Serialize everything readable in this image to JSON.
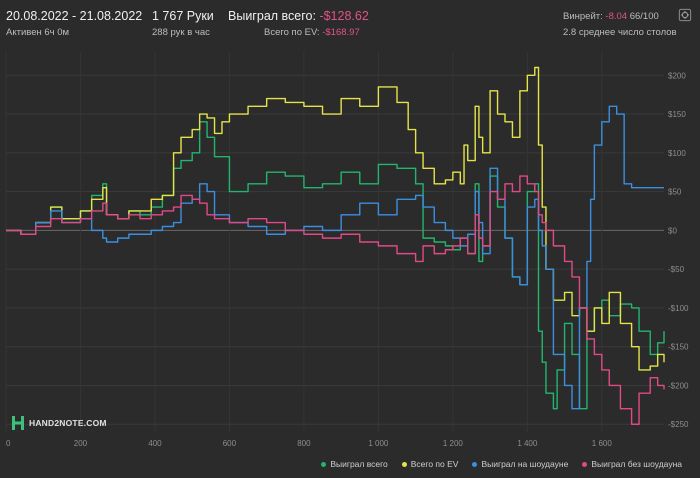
{
  "header": {
    "date_range": "20.08.2022 - 21.08.2022",
    "active": "Активен 6ч 0м",
    "hands": "1 767 Руки",
    "hands_per_hour": "288 рук в час",
    "won_label": "Выиграл всего:",
    "won_value": "-$128.62",
    "ev_label": "Всего по EV:",
    "ev_value": "-$168.97",
    "winrate_label": "Винрейт:",
    "winrate_value": "-8.04",
    "winrate_suffix": "66/100",
    "tables": "2.8 среднее число столов"
  },
  "logo": {
    "text": "HAND2NOTE.COM",
    "icon": "h2n-logo-icon"
  },
  "settings": {
    "icon": "gear-icon"
  },
  "chart_data": {
    "type": "line",
    "xlim": [
      0,
      1767
    ],
    "ylim": [
      -260,
      230
    ],
    "x_ticks": [
      0,
      200,
      400,
      600,
      800,
      1000,
      1200,
      1400,
      1600
    ],
    "x_tick_labels": [
      "0",
      "200",
      "400",
      "600",
      "800",
      "1 000",
      "1 200",
      "1 400",
      "1 600"
    ],
    "y_ticks": [
      200,
      150,
      100,
      50,
      0,
      -50,
      -100,
      -150,
      -200,
      -250
    ],
    "y_tick_labels": [
      "$200",
      "$150",
      "$100",
      "$50",
      "$0",
      "-$50",
      "-$100",
      "-$150",
      "-$200",
      "-$250"
    ],
    "grid": true,
    "legend_position": "bottom-right",
    "series": [
      {
        "name": "Выиграл всего",
        "color": "#23b56e",
        "points": [
          [
            0,
            0
          ],
          [
            40,
            -5
          ],
          [
            80,
            10
          ],
          [
            120,
            30
          ],
          [
            150,
            15
          ],
          [
            200,
            25
          ],
          [
            230,
            45
          ],
          [
            260,
            60
          ],
          [
            270,
            20
          ],
          [
            300,
            15
          ],
          [
            330,
            25
          ],
          [
            360,
            20
          ],
          [
            390,
            30
          ],
          [
            420,
            45
          ],
          [
            450,
            80
          ],
          [
            470,
            90
          ],
          [
            500,
            100
          ],
          [
            520,
            140
          ],
          [
            540,
            120
          ],
          [
            560,
            95
          ],
          [
            600,
            50
          ],
          [
            650,
            60
          ],
          [
            700,
            75
          ],
          [
            750,
            70
          ],
          [
            800,
            55
          ],
          [
            850,
            60
          ],
          [
            900,
            75
          ],
          [
            950,
            60
          ],
          [
            1000,
            85
          ],
          [
            1050,
            80
          ],
          [
            1100,
            60
          ],
          [
            1120,
            -10
          ],
          [
            1150,
            -15
          ],
          [
            1180,
            -20
          ],
          [
            1200,
            -25
          ],
          [
            1220,
            -10
          ],
          [
            1240,
            -30
          ],
          [
            1260,
            60
          ],
          [
            1270,
            -40
          ],
          [
            1280,
            -20
          ],
          [
            1300,
            70
          ],
          [
            1320,
            30
          ],
          [
            1340,
            -10
          ],
          [
            1360,
            -60
          ],
          [
            1380,
            -70
          ],
          [
            1400,
            50
          ],
          [
            1420,
            60
          ],
          [
            1430,
            -130
          ],
          [
            1440,
            -170
          ],
          [
            1450,
            -210
          ],
          [
            1470,
            -230
          ],
          [
            1480,
            -180
          ],
          [
            1500,
            -120
          ],
          [
            1520,
            -160
          ],
          [
            1540,
            -230
          ],
          [
            1560,
            -130
          ],
          [
            1580,
            -100
          ],
          [
            1600,
            -90
          ],
          [
            1620,
            -110
          ],
          [
            1650,
            -95
          ],
          [
            1680,
            -100
          ],
          [
            1700,
            -130
          ],
          [
            1730,
            -160
          ],
          [
            1750,
            -145
          ],
          [
            1767,
            -130
          ]
        ]
      },
      {
        "name": "Всего по EV",
        "color": "#e4e44a",
        "points": [
          [
            0,
            0
          ],
          [
            40,
            -5
          ],
          [
            80,
            10
          ],
          [
            120,
            30
          ],
          [
            150,
            15
          ],
          [
            200,
            25
          ],
          [
            230,
            40
          ],
          [
            260,
            55
          ],
          [
            270,
            20
          ],
          [
            300,
            15
          ],
          [
            330,
            25
          ],
          [
            360,
            25
          ],
          [
            390,
            40
          ],
          [
            420,
            45
          ],
          [
            450,
            100
          ],
          [
            470,
            120
          ],
          [
            500,
            130
          ],
          [
            520,
            150
          ],
          [
            540,
            145
          ],
          [
            560,
            125
          ],
          [
            580,
            140
          ],
          [
            600,
            150
          ],
          [
            650,
            160
          ],
          [
            700,
            170
          ],
          [
            750,
            165
          ],
          [
            800,
            160
          ],
          [
            850,
            150
          ],
          [
            900,
            170
          ],
          [
            950,
            160
          ],
          [
            1000,
            185
          ],
          [
            1050,
            165
          ],
          [
            1080,
            130
          ],
          [
            1100,
            100
          ],
          [
            1120,
            80
          ],
          [
            1150,
            60
          ],
          [
            1180,
            65
          ],
          [
            1200,
            75
          ],
          [
            1220,
            60
          ],
          [
            1230,
            110
          ],
          [
            1240,
            90
          ],
          [
            1260,
            160
          ],
          [
            1270,
            120
          ],
          [
            1280,
            100
          ],
          [
            1300,
            180
          ],
          [
            1320,
            150
          ],
          [
            1340,
            140
          ],
          [
            1360,
            120
          ],
          [
            1380,
            180
          ],
          [
            1400,
            200
          ],
          [
            1420,
            210
          ],
          [
            1430,
            110
          ],
          [
            1440,
            30
          ],
          [
            1450,
            -50
          ],
          [
            1470,
            -90
          ],
          [
            1500,
            -80
          ],
          [
            1520,
            -110
          ],
          [
            1540,
            -100
          ],
          [
            1560,
            -130
          ],
          [
            1580,
            -100
          ],
          [
            1600,
            -120
          ],
          [
            1620,
            -80
          ],
          [
            1650,
            -120
          ],
          [
            1680,
            -150
          ],
          [
            1700,
            -180
          ],
          [
            1730,
            -175
          ],
          [
            1750,
            -160
          ],
          [
            1767,
            -170
          ]
        ]
      },
      {
        "name": "Выиграл на шоудауне",
        "color": "#3b8fe0",
        "points": [
          [
            0,
            0
          ],
          [
            40,
            -5
          ],
          [
            80,
            10
          ],
          [
            120,
            25
          ],
          [
            150,
            10
          ],
          [
            200,
            15
          ],
          [
            230,
            0
          ],
          [
            260,
            -10
          ],
          [
            270,
            -15
          ],
          [
            300,
            -10
          ],
          [
            330,
            -5
          ],
          [
            360,
            -5
          ],
          [
            390,
            0
          ],
          [
            420,
            5
          ],
          [
            450,
            10
          ],
          [
            470,
            35
          ],
          [
            500,
            40
          ],
          [
            520,
            60
          ],
          [
            540,
            50
          ],
          [
            560,
            20
          ],
          [
            600,
            10
          ],
          [
            650,
            5
          ],
          [
            700,
            -5
          ],
          [
            750,
            0
          ],
          [
            800,
            5
          ],
          [
            850,
            0
          ],
          [
            900,
            20
          ],
          [
            950,
            35
          ],
          [
            1000,
            20
          ],
          [
            1050,
            40
          ],
          [
            1100,
            45
          ],
          [
            1120,
            30
          ],
          [
            1150,
            10
          ],
          [
            1180,
            0
          ],
          [
            1200,
            -10
          ],
          [
            1220,
            -20
          ],
          [
            1240,
            -5
          ],
          [
            1260,
            50
          ],
          [
            1270,
            10
          ],
          [
            1280,
            -30
          ],
          [
            1300,
            80
          ],
          [
            1320,
            40
          ],
          [
            1340,
            -10
          ],
          [
            1360,
            -60
          ],
          [
            1380,
            -70
          ],
          [
            1400,
            30
          ],
          [
            1420,
            40
          ],
          [
            1430,
            0
          ],
          [
            1440,
            -20
          ],
          [
            1450,
            -50
          ],
          [
            1470,
            -160
          ],
          [
            1500,
            -200
          ],
          [
            1520,
            -230
          ],
          [
            1540,
            -100
          ],
          [
            1560,
            -40
          ],
          [
            1570,
            40
          ],
          [
            1580,
            110
          ],
          [
            1600,
            140
          ],
          [
            1620,
            160
          ],
          [
            1640,
            150
          ],
          [
            1660,
            60
          ],
          [
            1680,
            55
          ],
          [
            1700,
            55
          ],
          [
            1730,
            55
          ],
          [
            1767,
            55
          ]
        ]
      },
      {
        "name": "Выиграл без шоудауна",
        "color": "#e14a86",
        "points": [
          [
            0,
            0
          ],
          [
            40,
            -5
          ],
          [
            80,
            5
          ],
          [
            120,
            15
          ],
          [
            150,
            10
          ],
          [
            200,
            15
          ],
          [
            230,
            25
          ],
          [
            260,
            35
          ],
          [
            270,
            20
          ],
          [
            300,
            15
          ],
          [
            330,
            20
          ],
          [
            360,
            15
          ],
          [
            390,
            20
          ],
          [
            420,
            25
          ],
          [
            450,
            30
          ],
          [
            470,
            45
          ],
          [
            500,
            40
          ],
          [
            520,
            35
          ],
          [
            540,
            20
          ],
          [
            560,
            15
          ],
          [
            600,
            10
          ],
          [
            650,
            15
          ],
          [
            700,
            10
          ],
          [
            750,
            0
          ],
          [
            800,
            -5
          ],
          [
            850,
            -10
          ],
          [
            900,
            -5
          ],
          [
            950,
            -15
          ],
          [
            1000,
            -20
          ],
          [
            1050,
            -30
          ],
          [
            1100,
            -40
          ],
          [
            1120,
            -20
          ],
          [
            1150,
            -30
          ],
          [
            1180,
            -25
          ],
          [
            1200,
            -20
          ],
          [
            1220,
            -10
          ],
          [
            1240,
            -30
          ],
          [
            1260,
            20
          ],
          [
            1270,
            -10
          ],
          [
            1280,
            -20
          ],
          [
            1300,
            50
          ],
          [
            1320,
            40
          ],
          [
            1340,
            60
          ],
          [
            1360,
            50
          ],
          [
            1380,
            70
          ],
          [
            1400,
            60
          ],
          [
            1420,
            50
          ],
          [
            1430,
            20
          ],
          [
            1440,
            10
          ],
          [
            1450,
            0
          ],
          [
            1470,
            -20
          ],
          [
            1500,
            -40
          ],
          [
            1520,
            -60
          ],
          [
            1540,
            -100
          ],
          [
            1560,
            -140
          ],
          [
            1580,
            -160
          ],
          [
            1600,
            -180
          ],
          [
            1620,
            -200
          ],
          [
            1650,
            -230
          ],
          [
            1680,
            -250
          ],
          [
            1700,
            -210
          ],
          [
            1730,
            -190
          ],
          [
            1750,
            -200
          ],
          [
            1767,
            -205
          ]
        ]
      }
    ]
  }
}
